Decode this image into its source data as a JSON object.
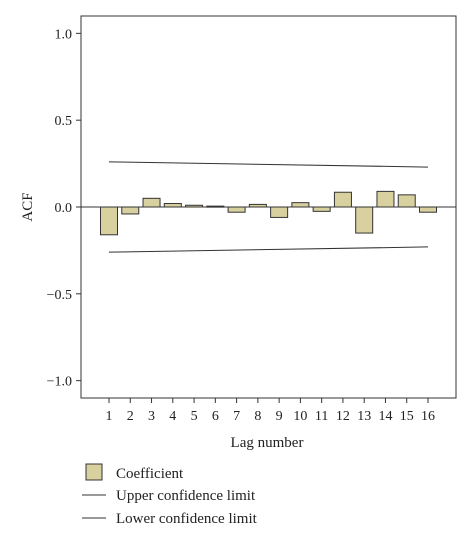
{
  "chart_data": {
    "type": "bar",
    "xlabel": "Lag number",
    "ylabel": "ACF",
    "ylim": [
      -1.1,
      1.1
    ],
    "yticks": [
      1.0,
      0.5,
      0.0,
      -0.5,
      -1.0
    ],
    "ytick_labels": [
      "1.0",
      "0.5",
      "0.0",
      "−0.5",
      "−1.0"
    ],
    "categories": [
      "1",
      "2",
      "3",
      "4",
      "5",
      "6",
      "7",
      "8",
      "9",
      "10",
      "11",
      "12",
      "13",
      "14",
      "15",
      "16"
    ],
    "series": [
      {
        "name": "Coefficient",
        "values": [
          -0.16,
          -0.04,
          0.05,
          0.02,
          0.01,
          0.005,
          -0.03,
          0.015,
          -0.06,
          0.025,
          -0.025,
          0.085,
          -0.15,
          0.09,
          0.07,
          -0.03
        ]
      }
    ],
    "confidence_limits": {
      "upper": {
        "name": "Upper confidence limit",
        "start": 0.26,
        "end": 0.23
      },
      "lower": {
        "name": "Lower confidence limit",
        "start": -0.26,
        "end": -0.23
      }
    },
    "grid": false,
    "legend_position": "bottom-left",
    "colors": {
      "bar": "#d9d0a0",
      "bar_edge": "#333333",
      "line": "#333333"
    }
  }
}
